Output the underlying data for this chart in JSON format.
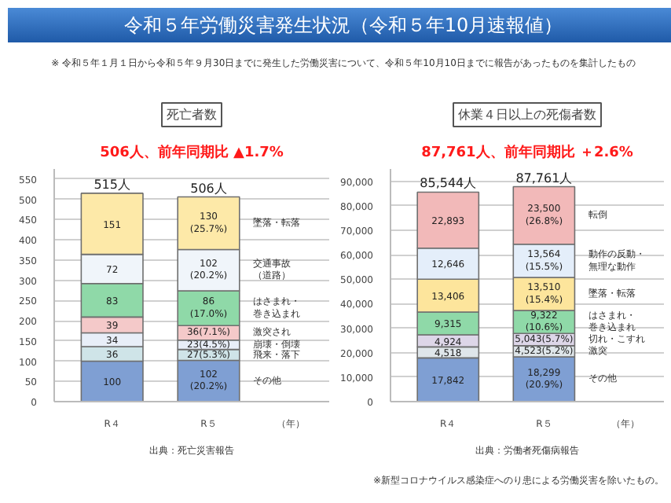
{
  "chart_data": [
    {
      "type": "bar",
      "stacked": true,
      "title": "死亡者数",
      "subtitle": "506人、前年同期比 ▲1.7%",
      "xlabel": "（年）",
      "categories": [
        "R４",
        "R５"
      ],
      "ylim": [
        0,
        575
      ],
      "yticks": [
        0,
        50,
        100,
        150,
        200,
        250,
        300,
        350,
        400,
        450,
        500,
        550
      ],
      "grid": "y",
      "totals": [
        "515人",
        "506人"
      ],
      "annotations": [
        "令和５年労働災害発生状況（令和５年10月速報値）",
        "※ 令和５年１月１日から令和５年９月30日までに発生した労働災害について、令和５年10月10日までに報告があったものを集計したもの",
        "出典：死亡災害報告"
      ],
      "series": [
        {
          "name": "その他",
          "color": "#7f9fd3",
          "values": [
            100,
            102
          ],
          "value_labels": [
            "100",
            "102\n(20.2%)"
          ]
        },
        {
          "name": "飛来・落下",
          "color": "#cfe4e8",
          "values": [
            36,
            27
          ],
          "value_labels": [
            "36",
            "27(5.3%)"
          ]
        },
        {
          "name": "崩壊・倒壊",
          "color": "#e8eef8",
          "values": [
            34,
            23
          ],
          "value_labels": [
            "34",
            "23(4.5%)"
          ]
        },
        {
          "name": "激突され",
          "color": "#f4c9c9",
          "values": [
            39,
            36
          ],
          "value_labels": [
            "39",
            "36(7.1%)"
          ]
        },
        {
          "name": "はさまれ・巻き込まれ",
          "color": "#8fd9a8",
          "values": [
            83,
            86
          ],
          "value_labels": [
            "83",
            "86\n(17.0%)"
          ]
        },
        {
          "name": "交通事故（道路）",
          "color": "#f0f5fa",
          "values": [
            72,
            102
          ],
          "value_labels": [
            "72",
            "102\n(20.2%)"
          ]
        },
        {
          "name": "墜落・転落",
          "color": "#fde9a8",
          "values": [
            151,
            130
          ],
          "value_labels": [
            "151",
            "130\n(25.7%)"
          ]
        }
      ]
    },
    {
      "type": "bar",
      "stacked": true,
      "title": "休業４日以上の死傷者数",
      "subtitle": "87,761人、前年同期比 ＋2.6%",
      "xlabel": "（年）",
      "categories": [
        "R４",
        "R５"
      ],
      "ylim": [
        0,
        95000
      ],
      "yticks": [
        {
          "value": 0,
          "label": "0"
        },
        {
          "value": 10000,
          "label": "10,000"
        },
        {
          "value": 20000,
          "label": "20,000"
        },
        {
          "value": 30000,
          "label": "30,000"
        },
        {
          "value": 40000,
          "label": "40,000"
        },
        {
          "value": 50000,
          "label": "50,000"
        },
        {
          "value": 60000,
          "label": "60,000"
        },
        {
          "value": 70000,
          "label": "70,000"
        },
        {
          "value": 80000,
          "label": "80,000"
        },
        {
          "value": 90000,
          "label": "90,000"
        }
      ],
      "grid": "y",
      "totals": [
        "85,544人",
        "87,761人"
      ],
      "annotations": [
        "出典：労働者死傷病報告",
        "※新型コロナウイルス感染症へのり患による労働災害を除いたもの。"
      ],
      "series": [
        {
          "name": "その他",
          "color": "#7f9fd3",
          "values": [
            17842,
            18299
          ],
          "value_labels": [
            "17,842",
            "18,299\n(20.9%)"
          ]
        },
        {
          "name": "激突",
          "color": "#dfe6ea",
          "values": [
            4518,
            4523
          ],
          "value_labels": [
            "4,518",
            "4,523(5.2%)"
          ]
        },
        {
          "name": "切れ・こすれ",
          "color": "#ddd6e8",
          "values": [
            4924,
            5043
          ],
          "value_labels": [
            "4,924",
            "5,043(5.7%)"
          ]
        },
        {
          "name": "はさまれ・巻き込まれ",
          "color": "#8fd9a8",
          "values": [
            9315,
            9322
          ],
          "value_labels": [
            "9,315",
            "9,322\n(10.6%)"
          ]
        },
        {
          "name": "墜落・転落",
          "color": "#fde59c",
          "values": [
            13406,
            13510
          ],
          "value_labels": [
            "13,406",
            "13,510\n(15.4%)"
          ]
        },
        {
          "name": "動作の反動・無理な動作",
          "color": "#e4eefa",
          "values": [
            12646,
            13564
          ],
          "value_labels": [
            "12,646",
            "13,564\n(15.5%)"
          ]
        },
        {
          "name": "転倒",
          "color": "#f2b9b9",
          "values": [
            22893,
            23500
          ],
          "value_labels": [
            "22,893",
            "23,500\n(26.8%)"
          ]
        }
      ]
    }
  ]
}
